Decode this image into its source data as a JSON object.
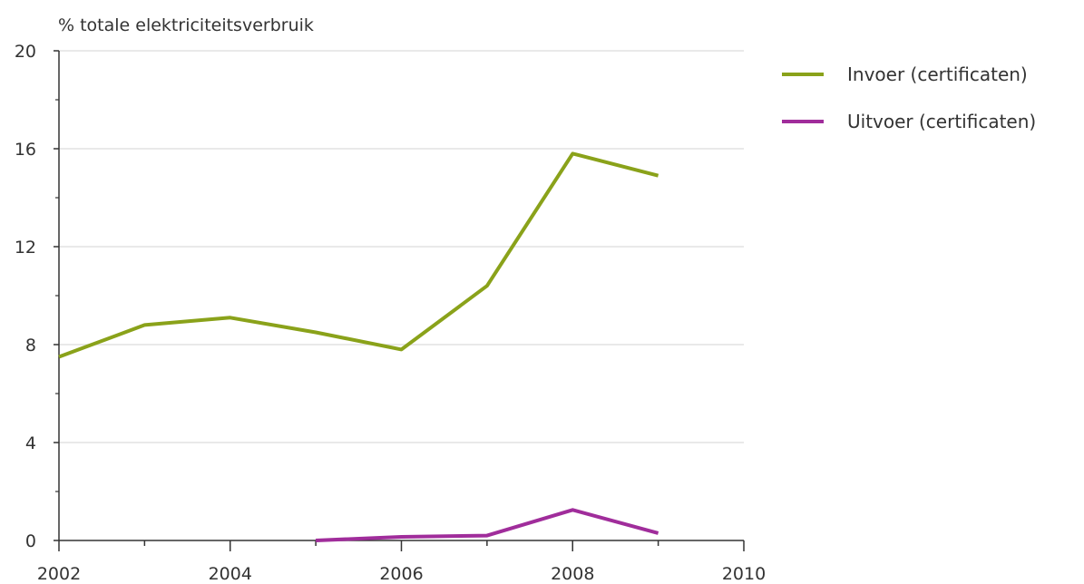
{
  "chart_data": {
    "type": "line",
    "ylabel": "% totale elektriciteitsverbruik",
    "xlabel": "",
    "xlim": [
      2002,
      2010
    ],
    "ylim": [
      0,
      20
    ],
    "xticks": [
      "2002",
      "2004",
      "2006",
      "2008",
      "2010"
    ],
    "yticks": [
      "0",
      "4",
      "8",
      "12",
      "16",
      "20"
    ],
    "grid": true,
    "legend_position": "top-right",
    "series": [
      {
        "name": "Invoer (certificaten)",
        "color": "#8aa21a",
        "x": [
          2002,
          2003,
          2004,
          2005,
          2006,
          2007,
          2008,
          2009
        ],
        "values": [
          7.5,
          8.8,
          9.1,
          8.5,
          7.8,
          10.4,
          15.8,
          14.9
        ]
      },
      {
        "name": "Uitvoer (certificaten)",
        "color": "#a02d9b",
        "x": [
          2005,
          2006,
          2007,
          2008,
          2009
        ],
        "values": [
          0.0,
          0.15,
          0.2,
          1.25,
          0.3
        ]
      }
    ]
  }
}
